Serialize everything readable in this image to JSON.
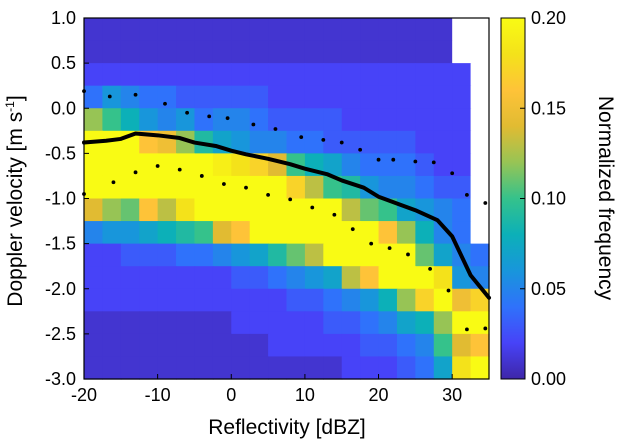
{
  "chart_data": {
    "type": "heatmap",
    "title": "",
    "xlabel": "Reflectivity [dBZ]",
    "ylabel_parts": [
      "Doppler velocity [m s",
      "-1",
      "]"
    ],
    "colorbar_label": "Normalized frequency",
    "xlim": [
      -20,
      35
    ],
    "ylim": [
      -3.0,
      1.0
    ],
    "clim": [
      0.0,
      0.2
    ],
    "x_ticks": [
      -20,
      -10,
      0,
      10,
      20,
      30
    ],
    "x_tick_labels": [
      "-20",
      "-10",
      "0",
      "10",
      "20",
      "30"
    ],
    "y_ticks": [
      1.0,
      0.5,
      0.0,
      -0.5,
      -1.0,
      -1.5,
      -2.0,
      -2.5,
      -3.0
    ],
    "y_tick_labels": [
      "1.0",
      "0.5",
      "0.0",
      "-0.5",
      "-1.0",
      "-1.5",
      "-2.0",
      "-2.5",
      "-3.0"
    ],
    "colorbar_ticks": [
      0.0,
      0.05,
      0.1,
      0.15,
      0.2
    ],
    "colorbar_tick_labels": [
      "0.00",
      "0.05",
      "0.10",
      "0.15",
      "0.20"
    ],
    "x_bin_edges": [
      -20,
      -17.5,
      -15,
      -12.5,
      -10,
      -7.5,
      -5,
      -2.5,
      0,
      2.5,
      5,
      7.5,
      10,
      12.5,
      15,
      17.5,
      20,
      22.5,
      25,
      27.5,
      30,
      32.5,
      35
    ],
    "y_bin_edges": [
      -3.0,
      -2.75,
      -2.5,
      -2.25,
      -2.0,
      -1.75,
      -1.5,
      -1.25,
      -1.0,
      -0.75,
      -0.5,
      -0.25,
      0.0,
      0.25,
      0.5,
      0.75,
      1.0
    ],
    "frequency_rows_top_to_bottom": [
      [
        0.01,
        0.01,
        0.01,
        0.01,
        0.01,
        0.01,
        0.01,
        0.01,
        0.01,
        0.01,
        0.01,
        0.01,
        0.01,
        0.01,
        0.01,
        0.01,
        0.01,
        0.01,
        0.01,
        0.01,
        null,
        null
      ],
      [
        0.01,
        0.01,
        0.01,
        0.01,
        0.01,
        0.01,
        0.01,
        0.01,
        0.01,
        0.01,
        0.01,
        0.01,
        0.01,
        0.01,
        0.01,
        0.01,
        0.01,
        0.01,
        0.01,
        0.01,
        null,
        null
      ],
      [
        0.02,
        0.02,
        0.02,
        0.02,
        0.02,
        0.02,
        0.02,
        0.02,
        0.02,
        0.02,
        0.02,
        0.02,
        0.02,
        0.02,
        0.02,
        0.02,
        0.02,
        0.02,
        0.02,
        0.02,
        0.02,
        null
      ],
      [
        0.04,
        0.06,
        0.05,
        0.04,
        0.04,
        0.03,
        0.03,
        0.03,
        0.03,
        0.03,
        0.02,
        0.02,
        0.02,
        0.02,
        0.02,
        0.02,
        0.02,
        0.02,
        0.02,
        0.02,
        0.02,
        null
      ],
      [
        0.12,
        0.1,
        0.08,
        0.06,
        0.05,
        0.06,
        0.04,
        0.05,
        0.05,
        0.04,
        0.03,
        0.03,
        0.03,
        0.03,
        0.02,
        0.02,
        0.02,
        0.02,
        0.02,
        0.02,
        0.02,
        null
      ],
      [
        0.2,
        0.2,
        0.2,
        0.16,
        0.15,
        0.12,
        0.09,
        0.07,
        0.06,
        0.05,
        0.05,
        0.04,
        0.04,
        0.03,
        0.03,
        0.03,
        0.03,
        0.03,
        0.02,
        0.02,
        0.02,
        null
      ],
      [
        0.2,
        0.2,
        0.2,
        0.2,
        0.2,
        0.2,
        0.2,
        0.19,
        0.18,
        0.17,
        0.14,
        0.1,
        0.08,
        0.07,
        0.05,
        0.04,
        0.04,
        0.04,
        0.03,
        0.02,
        0.02,
        null
      ],
      [
        0.2,
        0.2,
        0.2,
        0.2,
        0.2,
        0.2,
        0.2,
        0.2,
        0.2,
        0.2,
        0.2,
        0.17,
        0.13,
        0.1,
        0.09,
        0.06,
        0.05,
        0.05,
        0.04,
        0.03,
        0.03,
        null
      ],
      [
        0.14,
        0.12,
        0.11,
        0.16,
        0.13,
        0.18,
        0.2,
        0.2,
        0.2,
        0.2,
        0.2,
        0.2,
        0.2,
        0.2,
        0.13,
        0.11,
        0.1,
        0.07,
        0.06,
        0.05,
        0.04,
        null
      ],
      [
        0.05,
        0.06,
        0.06,
        0.07,
        0.08,
        0.09,
        0.1,
        0.14,
        0.16,
        0.2,
        0.2,
        0.2,
        0.2,
        0.2,
        0.2,
        0.2,
        0.16,
        0.12,
        0.08,
        0.05,
        0.04,
        null
      ],
      [
        0.02,
        0.02,
        0.03,
        0.03,
        0.03,
        0.04,
        0.04,
        0.05,
        0.06,
        0.07,
        0.09,
        0.11,
        0.13,
        0.2,
        0.2,
        0.2,
        0.2,
        0.2,
        0.11,
        0.07,
        0.05,
        0.04
      ],
      [
        0.02,
        0.02,
        0.02,
        0.02,
        0.02,
        0.02,
        0.02,
        0.02,
        0.03,
        0.03,
        0.04,
        0.05,
        0.06,
        0.07,
        0.13,
        0.16,
        0.2,
        0.2,
        0.2,
        0.18,
        0.06,
        0.05
      ],
      [
        0.02,
        0.02,
        0.02,
        0.02,
        0.02,
        0.02,
        0.02,
        0.02,
        0.02,
        0.02,
        0.02,
        0.03,
        0.03,
        0.04,
        0.05,
        0.06,
        0.08,
        0.12,
        0.17,
        0.2,
        0.15,
        0.17
      ],
      [
        0.01,
        0.01,
        0.01,
        0.01,
        0.01,
        0.01,
        0.01,
        0.01,
        0.02,
        0.02,
        0.02,
        0.02,
        0.02,
        0.03,
        0.03,
        0.04,
        0.05,
        0.07,
        0.08,
        0.12,
        0.2,
        0.2
      ],
      [
        0.01,
        0.01,
        0.01,
        0.01,
        0.01,
        0.01,
        0.01,
        0.01,
        0.01,
        0.01,
        0.02,
        0.02,
        0.02,
        0.02,
        0.02,
        0.03,
        0.03,
        0.04,
        0.05,
        0.1,
        0.14,
        0.16
      ],
      [
        0.01,
        0.01,
        0.01,
        0.01,
        0.01,
        0.01,
        0.01,
        0.01,
        0.01,
        0.01,
        0.01,
        0.01,
        0.01,
        0.01,
        0.02,
        0.02,
        0.02,
        0.03,
        0.04,
        0.07,
        0.18,
        0.2
      ]
    ],
    "median_line": {
      "x": [
        -20,
        -17,
        -15,
        -13,
        -10,
        -7,
        -5,
        -2,
        0,
        2,
        5,
        8,
        10,
        13,
        15,
        18,
        20,
        23,
        25,
        28,
        30,
        32.5,
        35
      ],
      "y": [
        -0.38,
        -0.36,
        -0.34,
        -0.28,
        -0.3,
        -0.33,
        -0.38,
        -0.42,
        -0.47,
        -0.51,
        -0.56,
        -0.62,
        -0.67,
        -0.73,
        -0.8,
        -0.88,
        -0.98,
        -1.07,
        -1.13,
        -1.24,
        -1.42,
        -1.85,
        -2.1
      ]
    },
    "upper_percentile_dots": {
      "x": [
        -20,
        -16.5,
        -13,
        -9,
        -6,
        -3,
        -0.5,
        3,
        6,
        9.5,
        12.5,
        15,
        17.5,
        20,
        22,
        25,
        27.5,
        30,
        32,
        34.5
      ],
      "y": [
        0.19,
        0.13,
        0.15,
        0.05,
        -0.05,
        -0.09,
        -0.11,
        -0.18,
        -0.23,
        -0.32,
        -0.35,
        -0.38,
        -0.46,
        -0.57,
        -0.57,
        -0.59,
        -0.6,
        -0.72,
        -0.96,
        -1.05
      ]
    },
    "lower_percentile_dots": {
      "x": [
        -20,
        -16,
        -13,
        -10,
        -7,
        -4,
        -1,
        2,
        5,
        8,
        11,
        14,
        16.5,
        19,
        21.5,
        24,
        27,
        29.5,
        32,
        34.5
      ],
      "y": [
        -0.95,
        -0.82,
        -0.71,
        -0.64,
        -0.68,
        -0.75,
        -0.84,
        -0.88,
        -0.96,
        -1.01,
        -1.1,
        -1.18,
        -1.34,
        -1.5,
        -1.55,
        -1.62,
        -1.78,
        -2.02,
        -2.45,
        -2.44
      ]
    },
    "colors": {
      "colormap": [
        "#3e26a8",
        "#4743f8",
        "#2f72fb",
        "#1896db",
        "#0cb0b8",
        "#35c28b",
        "#97c455",
        "#e1bb32",
        "#fec338",
        "#f4e21a",
        "#f9fb14"
      ],
      "median_line": "#000000",
      "dots": "#000000",
      "nodata": "#ffffff",
      "axes": "#000000"
    }
  }
}
